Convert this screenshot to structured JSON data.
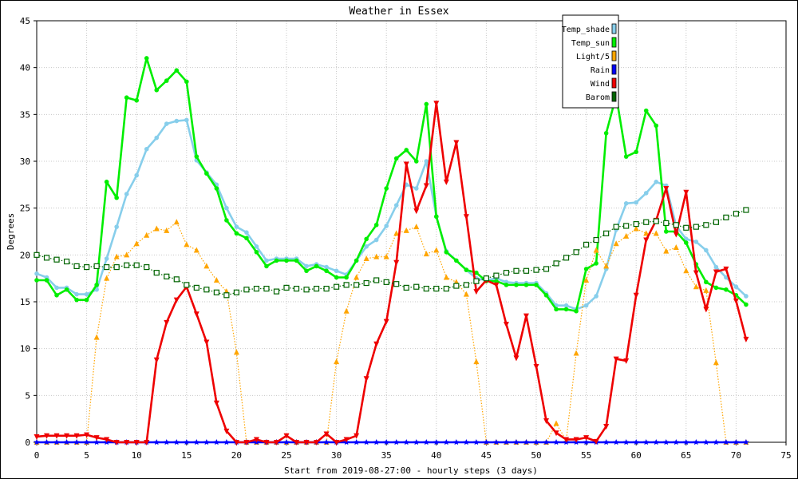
{
  "chart_data": {
    "type": "line",
    "title": "Weather in Essex",
    "xlabel": "Start from 2019-08-27:00 - hourly steps (3 days)",
    "ylabel": "Degrees",
    "xlim": [
      0,
      75
    ],
    "ylim": [
      0,
      45
    ],
    "xticks": [
      "0",
      "5",
      "10",
      "15",
      "20",
      "25",
      "30",
      "35",
      "40",
      "45",
      "50",
      "55",
      "60",
      "65",
      "70",
      "75"
    ],
    "yticks": [
      "0",
      "5",
      "10",
      "15",
      "20",
      "25",
      "30",
      "35",
      "40",
      "45"
    ],
    "grid": true,
    "legend_position": "top-right",
    "series": [
      {
        "name": "Temp_shade",
        "color": "#87ceeb",
        "style": "solid",
        "marker": "dot",
        "values": [
          18,
          17.6,
          16.5,
          16.5,
          15.8,
          15.8,
          16.3,
          19.6,
          23,
          26.5,
          28.5,
          31.3,
          32.5,
          34,
          34.3,
          34.4,
          30.1,
          28.8,
          27.5,
          25,
          23,
          22.4,
          20.9,
          19.4,
          19.6,
          19.6,
          19.6,
          18.8,
          19,
          18.7,
          18.3,
          17.9,
          19.4,
          20.9,
          21.6,
          23.1,
          25.3,
          27.5,
          27.1,
          30,
          24.1,
          20.4,
          19.4,
          18.4,
          17.5,
          17.3,
          17.5,
          17.1,
          17,
          17,
          17,
          15.9,
          14.6,
          14.6,
          14.2,
          14.6,
          15.6,
          18.5,
          22.7,
          25.5,
          25.6,
          26.6,
          27.8,
          27.4,
          23.1,
          21.7,
          21.4,
          20.5,
          18.7,
          17.6,
          16.6,
          15.6
        ]
      },
      {
        "name": "Temp_sun",
        "color": "#00ee00",
        "style": "solid",
        "marker": "dot",
        "values": [
          17.3,
          17.3,
          15.7,
          16.3,
          15.2,
          15.2,
          16.8,
          27.8,
          26.1,
          36.8,
          36.5,
          41,
          37.6,
          38.6,
          39.7,
          38.5,
          30.5,
          28.7,
          27.1,
          23.7,
          22.3,
          21.8,
          20.3,
          18.8,
          19.4,
          19.4,
          19.4,
          18.3,
          18.8,
          18.3,
          17.6,
          17.6,
          19.4,
          21.7,
          23.2,
          27.1,
          30.3,
          31.2,
          30,
          36.1,
          24.1,
          20.3,
          19.4,
          18.4,
          18.1,
          17.2,
          17.2,
          16.8,
          16.8,
          16.8,
          16.8,
          15.7,
          14.2,
          14.2,
          14,
          18.5,
          19.1,
          33,
          37,
          30.5,
          31,
          35.4,
          33.8,
          22.5,
          22.5,
          21.3,
          19,
          17.1,
          16.5,
          16.3,
          15.7,
          14.7
        ]
      },
      {
        "name": "Light/5",
        "color": "#ffa500",
        "style": "dotted",
        "marker": "triangle-up",
        "values": [
          0,
          0,
          0,
          0,
          0,
          0,
          11.2,
          17.5,
          19.8,
          20,
          21.2,
          22.1,
          22.8,
          22.6,
          23.5,
          21.1,
          20.5,
          18.8,
          17.3,
          16.1,
          9.6,
          0,
          0,
          0,
          0,
          0,
          0,
          0,
          0,
          0,
          8.6,
          14,
          17.6,
          19.6,
          19.8,
          19.8,
          22.3,
          22.6,
          23,
          20.1,
          20.5,
          17.6,
          17.1,
          15.8,
          8.6,
          0,
          0,
          0,
          0,
          0,
          0,
          0,
          2,
          0.2,
          9.5,
          17.3,
          20.5,
          18.8,
          21.2,
          22,
          22.8,
          22.3,
          22.3,
          20.4,
          20.8,
          18.3,
          16.6,
          16.2,
          8.5,
          0,
          0,
          0
        ]
      },
      {
        "name": "Rain",
        "color": "#0000ff",
        "style": "solid",
        "marker": "star",
        "values": [
          0,
          0,
          0,
          0,
          0,
          0,
          0,
          0,
          0,
          0,
          0,
          0,
          0,
          0,
          0,
          0,
          0,
          0,
          0,
          0,
          0,
          0,
          0,
          0,
          0,
          0,
          0,
          0,
          0,
          0,
          0,
          0,
          0,
          0,
          0,
          0,
          0,
          0,
          0,
          0,
          0,
          0,
          0,
          0,
          0,
          0,
          0,
          0,
          0,
          0,
          0,
          0,
          0,
          0,
          0,
          0,
          0,
          0,
          0,
          0,
          0,
          0,
          0,
          0,
          0,
          0,
          0,
          0,
          0,
          0,
          0,
          0
        ]
      },
      {
        "name": "Wind",
        "color": "#ee0000",
        "style": "solid",
        "marker": "triangle-down",
        "values": [
          0.6,
          0.7,
          0.7,
          0.7,
          0.7,
          0.8,
          0.5,
          0.3,
          0,
          0,
          0,
          0,
          8.8,
          12.8,
          15.2,
          16.6,
          13.7,
          10.7,
          4.2,
          1.2,
          0,
          0,
          0.3,
          0,
          0,
          0.7,
          0,
          0,
          0,
          0.9,
          0,
          0.3,
          0.7,
          6.8,
          10.5,
          12.9,
          19.2,
          29.7,
          24.7,
          27.4,
          36.2,
          27.8,
          32,
          24.1,
          16.1,
          17.3,
          16.8,
          12.6,
          9,
          13.5,
          8.1,
          2.3,
          1,
          0.3,
          0.3,
          0.5,
          0.1,
          1.7,
          8.9,
          8.7,
          15.7,
          21.6,
          23.7,
          27.1,
          22.2,
          26.7,
          18.1,
          14.2,
          18.2,
          18.5,
          15.1,
          11
        ]
      },
      {
        "name": "Barom",
        "color": "#006400",
        "style": "dotted",
        "marker": "square",
        "values": [
          20,
          19.7,
          19.5,
          19.3,
          18.8,
          18.7,
          18.8,
          18.7,
          18.7,
          18.9,
          18.9,
          18.7,
          18.1,
          17.7,
          17.4,
          16.8,
          16.5,
          16.3,
          16,
          15.7,
          16,
          16.3,
          16.4,
          16.4,
          16.1,
          16.5,
          16.4,
          16.3,
          16.4,
          16.4,
          16.6,
          16.8,
          16.8,
          17,
          17.3,
          17.1,
          16.9,
          16.5,
          16.6,
          16.4,
          16.4,
          16.4,
          16.7,
          16.8,
          17.2,
          17.5,
          17.8,
          18.1,
          18.3,
          18.3,
          18.4,
          18.5,
          19.1,
          19.7,
          20.3,
          21.1,
          21.6,
          22.3,
          23,
          23.1,
          23.3,
          23.5,
          23.6,
          23.4,
          23.2,
          22.9,
          23,
          23.2,
          23.5,
          24,
          24.4,
          24.8
        ]
      }
    ]
  }
}
